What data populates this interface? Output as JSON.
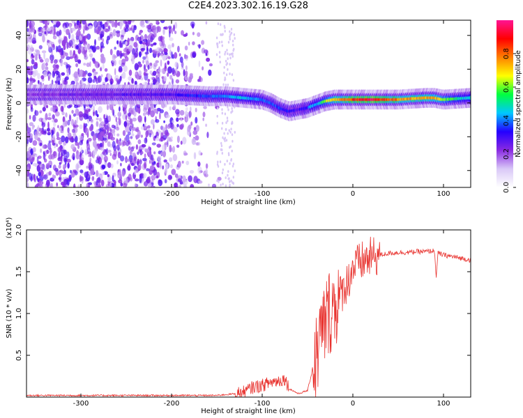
{
  "title": "C2E4.2023.302.16.19.G28",
  "chart_data": [
    {
      "type": "heatmap",
      "xlabel": "Height of straight line (km)",
      "ylabel": "Frequency (Hz)",
      "xlim": [
        -360,
        130
      ],
      "ylim": [
        -50,
        49
      ],
      "xticks": [
        -300,
        -200,
        -100,
        0,
        100
      ],
      "yticks": [
        -40,
        -20,
        0,
        20,
        40
      ],
      "colorbar": {
        "label": "Normalized spectral amplitude",
        "range": [
          0.0,
          1.0
        ],
        "ticks": [
          "0.0",
          "0.2",
          "0.4",
          "0.6",
          "0.8"
        ],
        "colors": [
          "#ffffff",
          "#d9c8f7",
          "#8a2be2",
          "#2400ff",
          "#00c8ff",
          "#00ff40",
          "#ffff00",
          "#ff8000",
          "#ff0000",
          "#ff1493"
        ]
      },
      "ridge": {
        "description_free": true,
        "x": [
          -360,
          -300,
          -200,
          -160,
          -140,
          -120,
          -100,
          -90,
          -80,
          -70,
          -60,
          -50,
          -45,
          -40,
          -35,
          -30,
          -20,
          -10,
          0,
          20,
          50,
          80,
          90,
          100,
          130
        ],
        "y": [
          5,
          5,
          5,
          4,
          4,
          3,
          2,
          0,
          -3,
          -5,
          -4,
          -3,
          -2,
          -1,
          0,
          1,
          2,
          2,
          2,
          2,
          2,
          3,
          3,
          2,
          3
        ],
        "amplitude": [
          0.25,
          0.3,
          0.35,
          0.45,
          0.5,
          0.55,
          0.5,
          0.45,
          0.45,
          0.4,
          0.35,
          0.4,
          0.55,
          0.5,
          0.6,
          0.7,
          0.8,
          0.85,
          0.9,
          0.95,
          0.85,
          0.8,
          0.85,
          0.7,
          0.55
        ]
      }
    },
    {
      "type": "line",
      "xlabel": "Height of straight line (km)",
      "ylabel": "SNR (10 * v/v)",
      "y_multiplier": "(x10⁴)",
      "xlim": [
        -360,
        130
      ],
      "ylim": [
        0.0,
        2.0
      ],
      "xticks": [
        -300,
        -200,
        -100,
        0,
        100
      ],
      "yticks": [
        "0.5",
        "1.0",
        "1.5",
        "2.0"
      ],
      "color": "#e8322e",
      "series": [
        {
          "x": [
            -360,
            -300,
            -250,
            -200,
            -150,
            -130,
            -120,
            -110,
            -100,
            -90,
            -80,
            -75,
            -70,
            -60,
            -50,
            -45,
            -40,
            -35,
            -30,
            -25,
            -20,
            -15,
            -10,
            -5,
            0,
            10,
            20,
            30,
            40,
            50,
            60,
            70,
            80,
            90,
            92,
            94,
            100,
            110,
            120,
            130
          ],
          "y": [
            0.02,
            0.02,
            0.02,
            0.02,
            0.02,
            0.04,
            0.06,
            0.12,
            0.14,
            0.18,
            0.2,
            0.22,
            0.1,
            0.04,
            0.08,
            0.3,
            0.5,
            0.75,
            0.9,
            1.05,
            1.1,
            1.2,
            1.3,
            1.4,
            1.55,
            1.62,
            1.67,
            1.7,
            1.72,
            1.73,
            1.73,
            1.74,
            1.74,
            1.75,
            1.45,
            1.72,
            1.7,
            1.68,
            1.66,
            1.64
          ]
        }
      ]
    }
  ]
}
